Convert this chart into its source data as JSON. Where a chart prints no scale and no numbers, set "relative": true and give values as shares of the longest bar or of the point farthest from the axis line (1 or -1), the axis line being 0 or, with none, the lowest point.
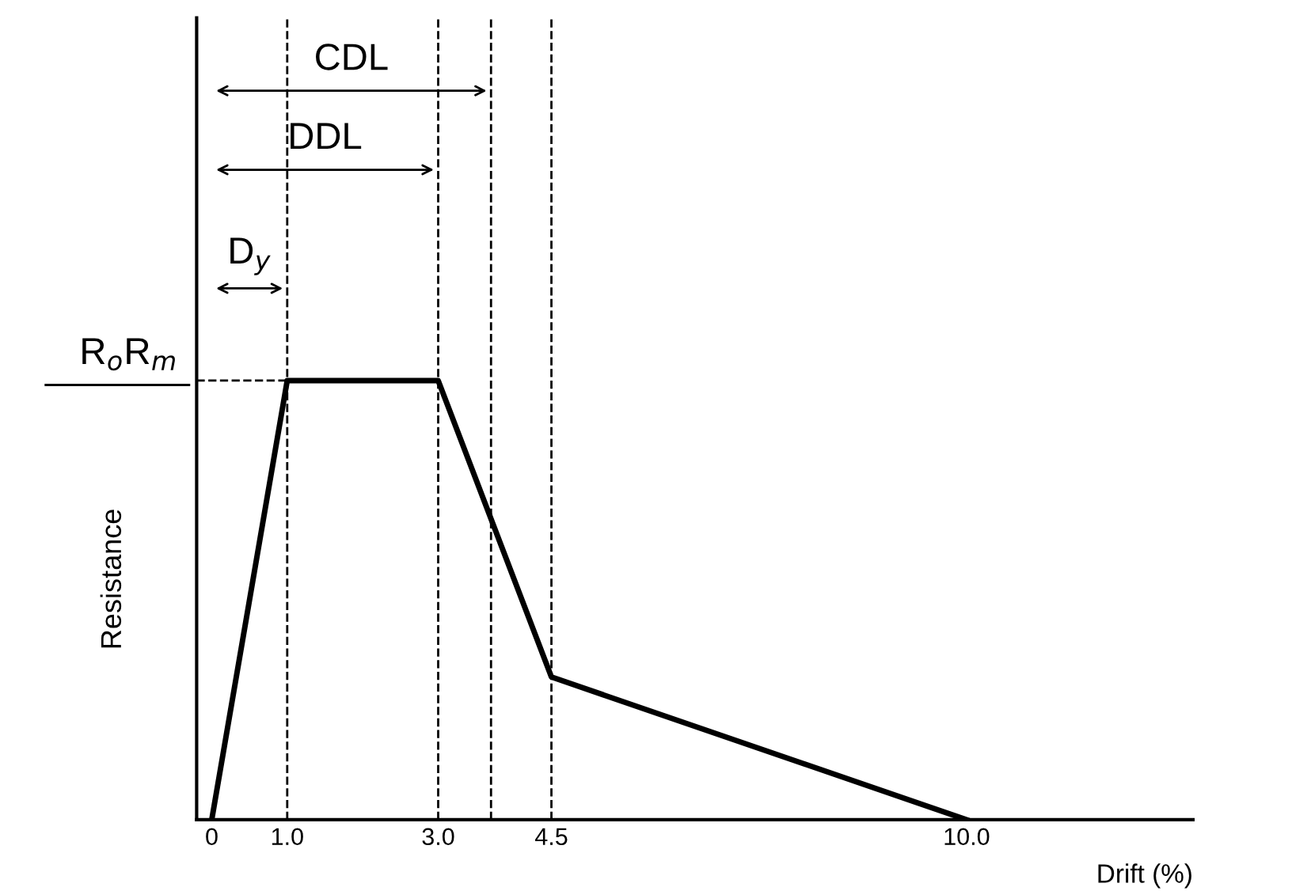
{
  "chart_data": {
    "type": "line",
    "relative": true,
    "xlabel": "Drift (%)",
    "ylabel": "Resistance",
    "x": [
      0,
      1.0,
      3.0,
      4.5,
      10.0
    ],
    "series": [
      {
        "color": "#000000",
        "values": [
          0,
          1,
          1,
          0.325,
          0
        ]
      }
    ],
    "xlim": [
      -0.2,
      13
    ],
    "xticks": [
      0,
      {
        "value": 1.0,
        "label": "1.0"
      },
      {
        "value": 3.0,
        "label": "3.0"
      },
      {
        "value": 4.5,
        "label": "4.5"
      },
      {
        "value": 10.0,
        "label": "10.0"
      }
    ],
    "tick_labels": "x",
    "grid": false,
    "legend": false,
    "marker": "none",
    "line_style": "solid",
    "ref_lines": [
      {
        "axis": "y",
        "value": 1,
        "label": "R$_{o}$R$_{m}$",
        "line_style": "dashed",
        "color": "#000000"
      },
      {
        "axis": "x",
        "value": 1.0,
        "label": null,
        "line_style": "dashed",
        "color": "#000000"
      },
      {
        "axis": "x",
        "value": 3.0,
        "label": null,
        "line_style": "dashed",
        "color": "#000000"
      },
      {
        "axis": "x",
        "value": 3.7,
        "label": null,
        "line_style": "dashed",
        "color": "#000000"
      },
      {
        "axis": "x",
        "value": 4.5,
        "label": null,
        "line_style": "dashed",
        "color": "#000000"
      }
    ],
    "annotations": [
      {
        "text": "CDL",
        "x": 3.7,
        "y": 1.66
      },
      {
        "text": "DDL",
        "x": 3.0,
        "y": 1.48
      },
      {
        "text": "D$_{y}$",
        "x": 1.0,
        "y": 1.21
      }
    ]
  }
}
